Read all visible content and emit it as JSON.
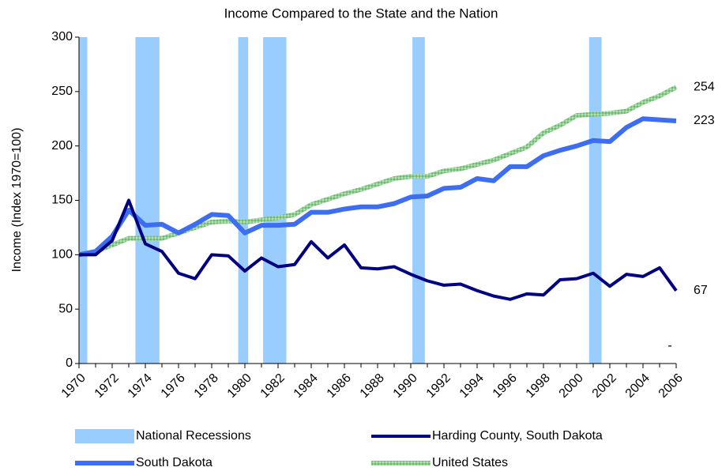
{
  "chart_data": {
    "type": "line",
    "title": "Income Compared to the State and the Nation",
    "y_label": "Income (Index 1970=100)",
    "x": [
      1970,
      1971,
      1972,
      1973,
      1974,
      1975,
      1976,
      1977,
      1978,
      1979,
      1980,
      1981,
      1982,
      1983,
      1984,
      1985,
      1986,
      1987,
      1988,
      1989,
      1990,
      1991,
      1992,
      1993,
      1994,
      1995,
      1996,
      1997,
      1998,
      1999,
      2000,
      2001,
      2002,
      2003,
      2004,
      2005,
      2006
    ],
    "xlim": [
      1970,
      2006
    ],
    "xticks": [
      1970,
      1972,
      1974,
      1976,
      1978,
      1980,
      1982,
      1984,
      1986,
      1988,
      1990,
      1992,
      1994,
      1996,
      1998,
      2000,
      2002,
      2004,
      2006
    ],
    "ylim": [
      0,
      300
    ],
    "yticks": [
      0,
      50,
      100,
      150,
      200,
      250,
      300
    ],
    "recessions": {
      "name": "National Recessions",
      "color": "#99ccff",
      "ranges": [
        [
          1970,
          1970.5
        ],
        [
          1973.4,
          1974.85
        ],
        [
          1979.6,
          1980.2
        ],
        [
          1981.1,
          1982.5
        ],
        [
          1990.1,
          1990.85
        ],
        [
          2000.75,
          2001.5
        ]
      ]
    },
    "series": [
      {
        "name": "United States",
        "color": "#8fcc8f",
        "values": [
          100,
          103,
          109,
          115,
          115,
          115,
          120,
          125,
          130,
          131,
          130,
          132,
          134,
          137,
          146,
          151,
          156,
          160,
          165,
          170,
          172,
          172,
          177,
          179,
          183,
          187,
          193,
          199,
          212,
          219,
          228,
          229,
          230,
          232,
          240,
          246,
          254
        ]
      },
      {
        "name": "South Dakota",
        "color": "#3d6ef2",
        "values": [
          100,
          103,
          117,
          141,
          127,
          128,
          120,
          128,
          137,
          136,
          120,
          127,
          127,
          128,
          139,
          139,
          142,
          144,
          144,
          147,
          153,
          154,
          161,
          162,
          170,
          168,
          181,
          181,
          191,
          196,
          200,
          205,
          204,
          217,
          225,
          224,
          223
        ]
      },
      {
        "name": "Harding County, South Dakota",
        "color": "#000080",
        "values": [
          100,
          100,
          113,
          150,
          110,
          103,
          83,
          78,
          100,
          99,
          85,
          97,
          89,
          91,
          112,
          97,
          109,
          88,
          87,
          89,
          82,
          76,
          72,
          73,
          67,
          62,
          59,
          64,
          63,
          77,
          78,
          83,
          71,
          82,
          80,
          88,
          67
        ]
      }
    ],
    "annotation": "-"
  }
}
